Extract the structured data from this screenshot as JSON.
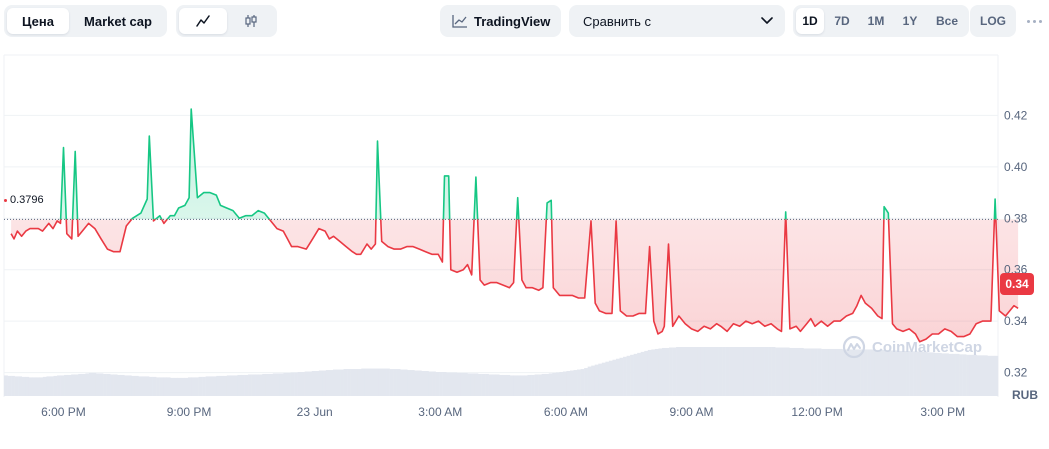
{
  "toolbar": {
    "view_tabs": [
      {
        "label": "Цена",
        "active": true
      },
      {
        "label": "Market cap",
        "active": false
      }
    ],
    "chart_type_tabs": [
      {
        "icon": "line-chart-icon",
        "active": true
      },
      {
        "icon": "candlestick-icon",
        "active": false
      }
    ],
    "tradingview_label": "TradingView",
    "compare_label": "Сравнить с",
    "periods": [
      {
        "label": "1D",
        "active": true
      },
      {
        "label": "7D",
        "active": false
      },
      {
        "label": "1M",
        "active": false
      },
      {
        "label": "1Y",
        "active": false
      },
      {
        "label": "Все",
        "active": false
      }
    ],
    "log_label": "LOG"
  },
  "price_tag": "0.34",
  "reference_label": "0.3796",
  "currency_label": "RUB",
  "watermark_text": "CoinMarketCap",
  "colors": {
    "up": "#16c784",
    "down": "#ea3943",
    "grid": "#eff2f5",
    "axis_text": "#58667e"
  },
  "chart_data": {
    "type": "line",
    "baseline": 0.3796,
    "y_ticks": [
      "0.42",
      "0.40",
      "0.38",
      "0.36",
      "0.34",
      "0.32"
    ],
    "y_tick_values": [
      0.42,
      0.4,
      0.38,
      0.36,
      0.34,
      0.32
    ],
    "ylim": [
      0.3105,
      0.4435
    ],
    "x_ticks": [
      {
        "label": "6:00 PM",
        "hour": 0
      },
      {
        "label": "9:00 PM",
        "hour": 3
      },
      {
        "label": "23 Jun",
        "hour": 6
      },
      {
        "label": "3:00 AM",
        "hour": 9
      },
      {
        "label": "6:00 AM",
        "hour": 12
      },
      {
        "label": "9:00 AM",
        "hour": 15
      },
      {
        "label": "12:00 PM",
        "hour": 18
      },
      {
        "label": "3:00 PM",
        "hour": 21
      }
    ],
    "xlim": [
      -1.42,
      22.32
    ],
    "series": [
      {
        "points": [
          [
            -1.25,
            0.374
          ],
          [
            -1.18,
            0.372
          ],
          [
            -1.1,
            0.375
          ],
          [
            -1.0,
            0.373
          ],
          [
            -0.9,
            0.375
          ],
          [
            -0.8,
            0.376
          ],
          [
            -0.6,
            0.376
          ],
          [
            -0.5,
            0.375
          ],
          [
            -0.35,
            0.378
          ],
          [
            -0.25,
            0.376
          ],
          [
            -0.15,
            0.379
          ],
          [
            -0.07,
            0.378
          ],
          [
            0.0,
            0.4075
          ],
          [
            0.08,
            0.374
          ],
          [
            0.2,
            0.372
          ],
          [
            0.28,
            0.406
          ],
          [
            0.35,
            0.373
          ],
          [
            0.45,
            0.375
          ],
          [
            0.6,
            0.378
          ],
          [
            0.75,
            0.376
          ],
          [
            0.9,
            0.372
          ],
          [
            1.05,
            0.368
          ],
          [
            1.2,
            0.367
          ],
          [
            1.35,
            0.367
          ],
          [
            1.5,
            0.377
          ],
          [
            1.65,
            0.38
          ],
          [
            1.85,
            0.382
          ],
          [
            2.0,
            0.3875
          ],
          [
            2.05,
            0.412
          ],
          [
            2.15,
            0.379
          ],
          [
            2.3,
            0.381
          ],
          [
            2.4,
            0.378
          ],
          [
            2.55,
            0.381
          ],
          [
            2.65,
            0.381
          ],
          [
            2.75,
            0.384
          ],
          [
            2.9,
            0.385
          ],
          [
            3.0,
            0.388
          ],
          [
            3.05,
            0.4225
          ],
          [
            3.2,
            0.388
          ],
          [
            3.35,
            0.39
          ],
          [
            3.5,
            0.39
          ],
          [
            3.65,
            0.389
          ],
          [
            3.75,
            0.385
          ],
          [
            3.9,
            0.384
          ],
          [
            4.05,
            0.383
          ],
          [
            4.2,
            0.38
          ],
          [
            4.35,
            0.381
          ],
          [
            4.5,
            0.381
          ],
          [
            4.65,
            0.383
          ],
          [
            4.8,
            0.382
          ],
          [
            4.95,
            0.379
          ],
          [
            5.1,
            0.376
          ],
          [
            5.25,
            0.375
          ],
          [
            5.35,
            0.372
          ],
          [
            5.45,
            0.369
          ],
          [
            5.6,
            0.369
          ],
          [
            5.8,
            0.368
          ],
          [
            5.95,
            0.372
          ],
          [
            6.1,
            0.376
          ],
          [
            6.25,
            0.375
          ],
          [
            6.35,
            0.372
          ],
          [
            6.45,
            0.373
          ],
          [
            6.6,
            0.371
          ],
          [
            6.75,
            0.369
          ],
          [
            6.9,
            0.367
          ],
          [
            7.0,
            0.366
          ],
          [
            7.1,
            0.366
          ],
          [
            7.25,
            0.37
          ],
          [
            7.35,
            0.368
          ],
          [
            7.45,
            0.37
          ],
          [
            7.5,
            0.41
          ],
          [
            7.6,
            0.371
          ],
          [
            7.75,
            0.369
          ],
          [
            7.9,
            0.368
          ],
          [
            8.05,
            0.368
          ],
          [
            8.2,
            0.369
          ],
          [
            8.35,
            0.369
          ],
          [
            8.5,
            0.368
          ],
          [
            8.65,
            0.367
          ],
          [
            8.8,
            0.366
          ],
          [
            8.95,
            0.366
          ],
          [
            9.05,
            0.363
          ],
          [
            9.1,
            0.3965
          ],
          [
            9.2,
            0.3965
          ],
          [
            9.25,
            0.36
          ],
          [
            9.4,
            0.359
          ],
          [
            9.55,
            0.36
          ],
          [
            9.65,
            0.362
          ],
          [
            9.75,
            0.358
          ],
          [
            9.85,
            0.396
          ],
          [
            9.95,
            0.356
          ],
          [
            10.05,
            0.354
          ],
          [
            10.2,
            0.355
          ],
          [
            10.35,
            0.355
          ],
          [
            10.5,
            0.354
          ],
          [
            10.65,
            0.353
          ],
          [
            10.75,
            0.355
          ],
          [
            10.85,
            0.388
          ],
          [
            10.95,
            0.356
          ],
          [
            11.05,
            0.353
          ],
          [
            11.2,
            0.353
          ],
          [
            11.35,
            0.352
          ],
          [
            11.45,
            0.353
          ],
          [
            11.55,
            0.386
          ],
          [
            11.65,
            0.387
          ],
          [
            11.7,
            0.353
          ],
          [
            11.85,
            0.35
          ],
          [
            12.0,
            0.35
          ],
          [
            12.15,
            0.35
          ],
          [
            12.3,
            0.349
          ],
          [
            12.45,
            0.349
          ],
          [
            12.6,
            0.379
          ],
          [
            12.7,
            0.347
          ],
          [
            12.8,
            0.344
          ],
          [
            12.95,
            0.343
          ],
          [
            13.1,
            0.343
          ],
          [
            13.2,
            0.379
          ],
          [
            13.3,
            0.344
          ],
          [
            13.45,
            0.342
          ],
          [
            13.6,
            0.342
          ],
          [
            13.75,
            0.343
          ],
          [
            13.9,
            0.343
          ],
          [
            14.0,
            0.369
          ],
          [
            14.1,
            0.34
          ],
          [
            14.2,
            0.335
          ],
          [
            14.3,
            0.336
          ],
          [
            14.35,
            0.338
          ],
          [
            14.45,
            0.37
          ],
          [
            14.55,
            0.338
          ],
          [
            14.7,
            0.342
          ],
          [
            14.85,
            0.339
          ],
          [
            15.0,
            0.337
          ],
          [
            15.15,
            0.336
          ],
          [
            15.3,
            0.338
          ],
          [
            15.45,
            0.337
          ],
          [
            15.6,
            0.339
          ],
          [
            15.7,
            0.338
          ],
          [
            15.85,
            0.336
          ],
          [
            16.0,
            0.339
          ],
          [
            16.15,
            0.338
          ],
          [
            16.3,
            0.34
          ],
          [
            16.45,
            0.339
          ],
          [
            16.6,
            0.34
          ],
          [
            16.75,
            0.338
          ],
          [
            16.9,
            0.339
          ],
          [
            17.05,
            0.337
          ],
          [
            17.15,
            0.336
          ],
          [
            17.25,
            0.3825
          ],
          [
            17.35,
            0.337
          ],
          [
            17.5,
            0.338
          ],
          [
            17.6,
            0.336
          ],
          [
            17.75,
            0.339
          ],
          [
            17.85,
            0.341
          ],
          [
            17.95,
            0.338
          ],
          [
            18.1,
            0.34
          ],
          [
            18.25,
            0.338
          ],
          [
            18.4,
            0.34
          ],
          [
            18.55,
            0.34
          ],
          [
            18.7,
            0.342
          ],
          [
            18.85,
            0.343
          ],
          [
            18.95,
            0.346
          ],
          [
            19.05,
            0.35
          ],
          [
            19.15,
            0.347
          ],
          [
            19.3,
            0.345
          ],
          [
            19.45,
            0.342
          ],
          [
            19.55,
            0.341
          ],
          [
            19.6,
            0.3845
          ],
          [
            19.7,
            0.382
          ],
          [
            19.8,
            0.339
          ],
          [
            19.9,
            0.337
          ],
          [
            20.05,
            0.336
          ],
          [
            20.2,
            0.337
          ],
          [
            20.35,
            0.335
          ],
          [
            20.45,
            0.332
          ],
          [
            20.6,
            0.333
          ],
          [
            20.75,
            0.335
          ],
          [
            20.9,
            0.335
          ],
          [
            21.05,
            0.337
          ],
          [
            21.2,
            0.336
          ],
          [
            21.35,
            0.334
          ],
          [
            21.5,
            0.334
          ],
          [
            21.65,
            0.335
          ],
          [
            21.8,
            0.339
          ],
          [
            21.95,
            0.34
          ],
          [
            22.05,
            0.34
          ],
          [
            22.15,
            0.34
          ],
          [
            22.25,
            0.3875
          ],
          [
            22.35,
            0.344
          ],
          [
            22.5,
            0.342
          ],
          [
            22.6,
            0.344
          ],
          [
            22.7,
            0.346
          ],
          [
            22.8,
            0.345
          ]
        ]
      }
    ],
    "volume_bars": [
      0.42,
      0.41,
      0.41,
      0.4,
      0.4,
      0.39,
      0.39,
      0.38,
      0.38,
      0.38,
      0.38,
      0.39,
      0.4,
      0.4,
      0.41,
      0.42,
      0.42,
      0.43,
      0.43,
      0.44,
      0.44,
      0.45,
      0.45,
      0.46,
      0.47,
      0.47,
      0.46,
      0.46,
      0.45,
      0.45,
      0.44,
      0.44,
      0.43,
      0.43,
      0.42,
      0.42,
      0.41,
      0.41,
      0.4,
      0.4,
      0.4,
      0.39,
      0.39,
      0.38,
      0.38,
      0.38,
      0.38,
      0.37,
      0.37,
      0.37,
      0.37,
      0.37,
      0.38,
      0.38,
      0.38,
      0.39,
      0.39,
      0.4,
      0.4,
      0.4,
      0.41,
      0.41,
      0.41,
      0.42,
      0.42,
      0.42,
      0.43,
      0.43,
      0.43,
      0.44,
      0.44,
      0.44,
      0.44,
      0.45,
      0.45,
      0.45,
      0.46,
      0.46,
      0.46,
      0.47,
      0.47,
      0.48,
      0.48,
      0.49,
      0.49,
      0.5,
      0.5,
      0.51,
      0.51,
      0.52,
      0.52,
      0.53,
      0.53,
      0.54,
      0.54,
      0.54,
      0.55,
      0.55,
      0.55,
      0.55,
      0.55,
      0.56,
      0.56,
      0.56,
      0.56,
      0.56,
      0.56,
      0.56,
      0.56,
      0.55,
      0.55,
      0.55,
      0.54,
      0.54,
      0.53,
      0.53,
      0.52,
      0.52,
      0.51,
      0.51,
      0.5,
      0.5,
      0.49,
      0.49,
      0.49,
      0.48,
      0.48,
      0.48,
      0.47,
      0.47,
      0.47,
      0.46,
      0.46,
      0.46,
      0.45,
      0.45,
      0.45,
      0.44,
      0.44,
      0.44,
      0.43,
      0.43,
      0.43,
      0.42,
      0.42,
      0.42,
      0.42,
      0.42,
      0.43,
      0.43,
      0.44,
      0.44,
      0.45,
      0.45,
      0.46,
      0.47,
      0.48,
      0.49,
      0.5,
      0.51,
      0.52,
      0.53,
      0.54,
      0.55,
      0.57,
      0.6,
      0.62,
      0.64,
      0.66,
      0.68,
      0.7,
      0.72,
      0.74,
      0.76,
      0.78,
      0.8,
      0.82,
      0.84,
      0.86,
      0.88,
      0.9,
      0.92,
      0.94,
      0.95,
      0.96,
      0.97,
      0.98,
      0.98,
      0.99,
      0.99,
      1.0,
      1.0,
      1.0,
      1.0,
      1.0,
      1.0,
      1.0,
      1.0,
      1.0,
      1.0,
      1.0,
      1.0,
      1.0,
      1.0,
      1.0,
      1.0,
      1.0,
      1.0,
      1.0,
      1.0,
      1.0,
      1.0,
      1.0,
      1.0,
      1.0,
      1.0,
      1.0,
      1.0,
      0.99,
      0.99,
      0.99,
      0.99,
      0.98,
      0.98,
      0.98,
      0.98,
      0.97,
      0.97,
      0.97,
      0.97,
      0.97,
      0.96,
      0.96,
      0.96,
      0.96,
      0.96,
      0.96,
      0.95,
      0.95,
      0.95,
      0.95,
      0.95,
      0.95,
      0.95,
      0.95,
      0.95,
      0.94,
      0.94,
      0.94,
      0.94,
      0.93,
      0.93,
      0.93,
      0.92,
      0.92,
      0.92,
      0.91,
      0.91,
      0.91,
      0.9,
      0.9,
      0.89,
      0.89,
      0.88,
      0.88,
      0.87,
      0.87,
      0.86,
      0.86,
      0.86,
      0.85,
      0.85,
      0.84,
      0.84,
      0.84,
      0.83,
      0.83,
      0.83,
      0.82,
      0.82,
      0.82
    ]
  }
}
